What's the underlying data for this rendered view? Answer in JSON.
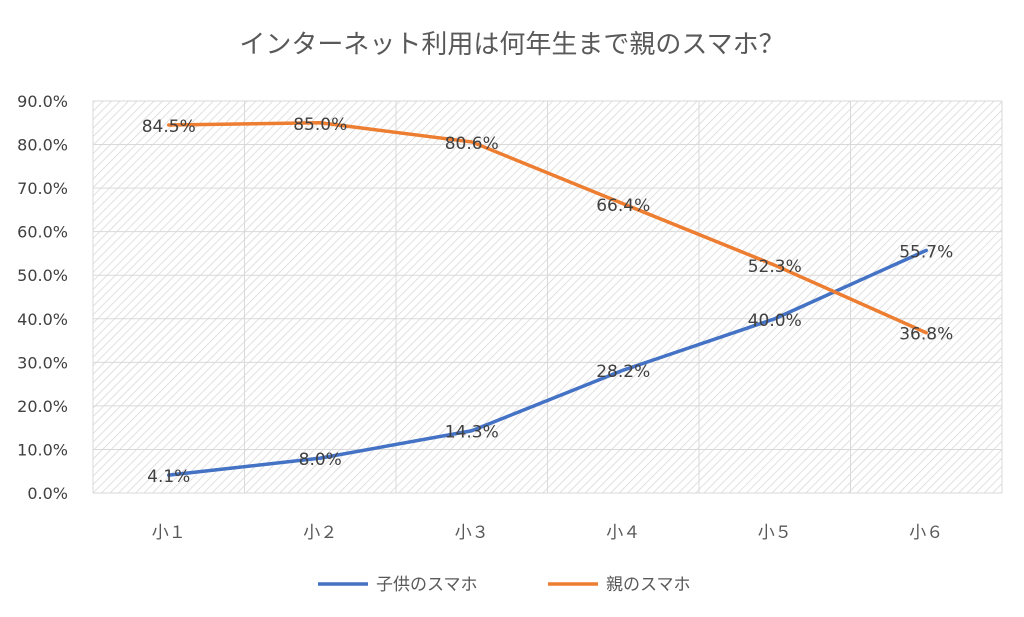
{
  "chart_data": {
    "type": "line",
    "title": "インターネット利用は何年生まで親のスマホ？",
    "categories": [
      "小１",
      "小２",
      "小３",
      "小４",
      "小５",
      "小６"
    ],
    "y_tick_labels": [
      "0.0%",
      "10.0%",
      "20.0%",
      "30.0%",
      "40.0%",
      "50.0%",
      "60.0%",
      "70.0%",
      "80.0%",
      "90.0%"
    ],
    "ylim": [
      0,
      90
    ],
    "unit": "%",
    "grid": true,
    "legend_position": "bottom",
    "series": [
      {
        "name": "子供のスマホ",
        "color": "#4472C4",
        "values": [
          4.1,
          8.0,
          14.3,
          28.2,
          40.0,
          55.7
        ],
        "labels": [
          "4.1%",
          "8.0%",
          "14.3%",
          "28.2%",
          "40.0%",
          "55.7%"
        ]
      },
      {
        "name": "親のスマホ",
        "color": "#ED7D31",
        "values": [
          84.5,
          85.0,
          80.6,
          66.4,
          52.3,
          36.8
        ],
        "labels": [
          "84.5%",
          "85.0%",
          "80.6%",
          "66.4%",
          "52.3%",
          "36.8%"
        ]
      }
    ]
  }
}
